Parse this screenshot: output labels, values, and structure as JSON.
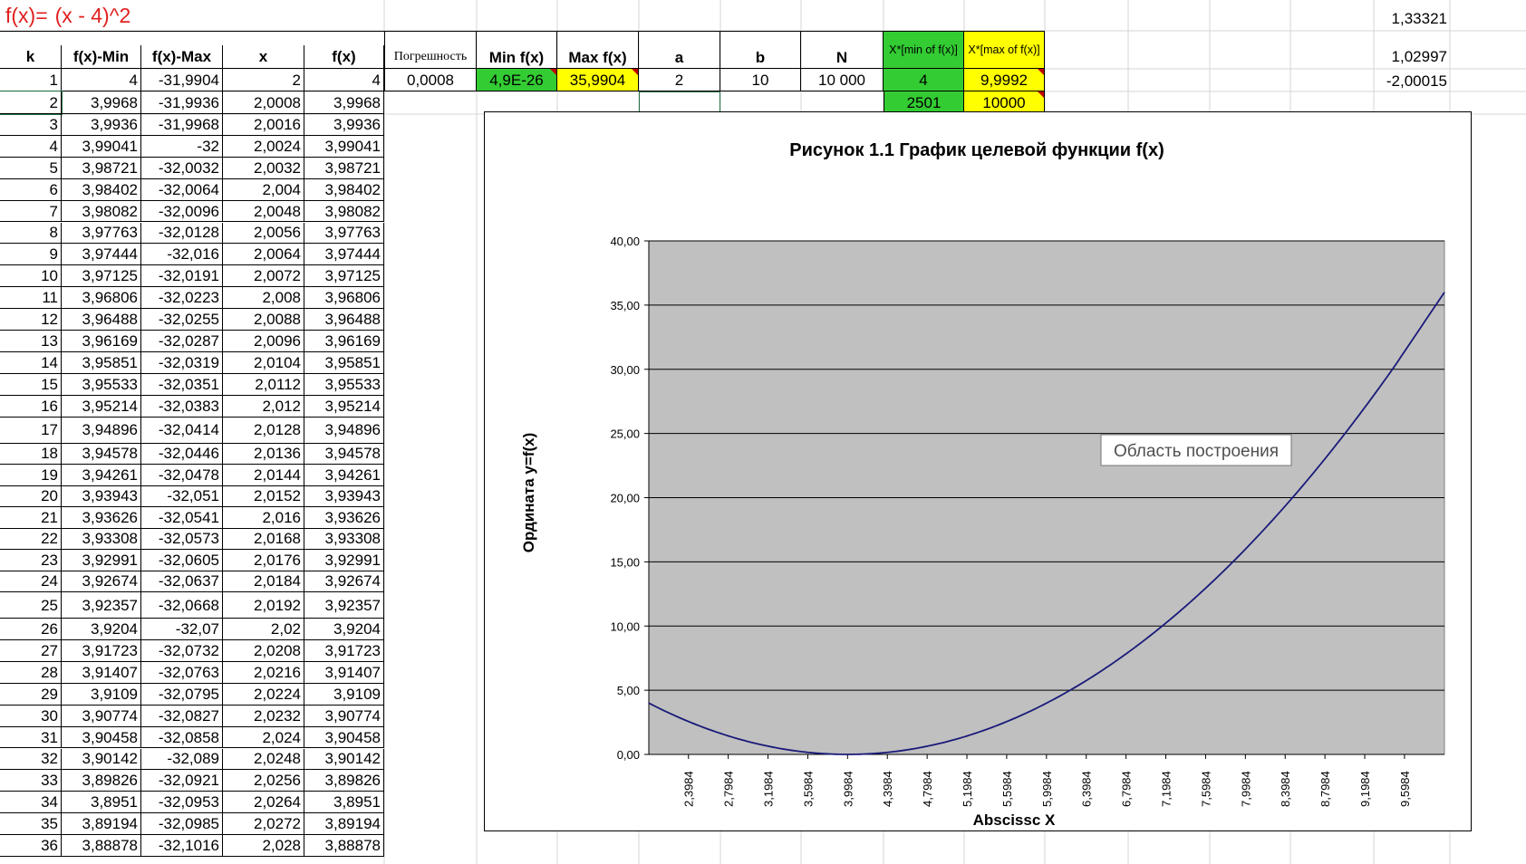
{
  "formula": {
    "lhs": "f(x)=",
    "rhs": "(x - 4)^2"
  },
  "right_values": [
    "1,33321",
    "1,02997",
    "-2,00015"
  ],
  "table": {
    "headers": [
      "k",
      "f(x)-Min",
      "f(x)-Max",
      "x",
      "f(x)"
    ],
    "rows": [
      [
        "1",
        "4",
        "-31,9904",
        "2",
        "4"
      ],
      [
        "2",
        "3,9968",
        "-31,9936",
        "2,0008",
        "3,9968"
      ],
      [
        "3",
        "3,9936",
        "-31,9968",
        "2,0016",
        "3,9936"
      ],
      [
        "4",
        "3,99041",
        "-32",
        "2,0024",
        "3,99041"
      ],
      [
        "5",
        "3,98721",
        "-32,0032",
        "2,0032",
        "3,98721"
      ],
      [
        "6",
        "3,98402",
        "-32,0064",
        "2,004",
        "3,98402"
      ],
      [
        "7",
        "3,98082",
        "-32,0096",
        "2,0048",
        "3,98082"
      ],
      [
        "8",
        "3,97763",
        "-32,0128",
        "2,0056",
        "3,97763"
      ],
      [
        "9",
        "3,97444",
        "-32,016",
        "2,0064",
        "3,97444"
      ],
      [
        "10",
        "3,97125",
        "-32,0191",
        "2,0072",
        "3,97125"
      ],
      [
        "11",
        "3,96806",
        "-32,0223",
        "2,008",
        "3,96806"
      ],
      [
        "12",
        "3,96488",
        "-32,0255",
        "2,0088",
        "3,96488"
      ],
      [
        "13",
        "3,96169",
        "-32,0287",
        "2,0096",
        "3,96169"
      ],
      [
        "14",
        "3,95851",
        "-32,0319",
        "2,0104",
        "3,95851"
      ],
      [
        "15",
        "3,95533",
        "-32,0351",
        "2,0112",
        "3,95533"
      ],
      [
        "16",
        "3,95214",
        "-32,0383",
        "2,012",
        "3,95214"
      ],
      [
        "17",
        "3,94896",
        "-32,0414",
        "2,0128",
        "3,94896"
      ],
      [
        "18",
        "3,94578",
        "-32,0446",
        "2,0136",
        "3,94578"
      ],
      [
        "19",
        "3,94261",
        "-32,0478",
        "2,0144",
        "3,94261"
      ],
      [
        "20",
        "3,93943",
        "-32,051",
        "2,0152",
        "3,93943"
      ],
      [
        "21",
        "3,93626",
        "-32,0541",
        "2,016",
        "3,93626"
      ],
      [
        "22",
        "3,93308",
        "-32,0573",
        "2,0168",
        "3,93308"
      ],
      [
        "23",
        "3,92991",
        "-32,0605",
        "2,0176",
        "3,92991"
      ],
      [
        "24",
        "3,92674",
        "-32,0637",
        "2,0184",
        "3,92674"
      ],
      [
        "25",
        "3,92357",
        "-32,0668",
        "2,0192",
        "3,92357"
      ],
      [
        "26",
        "3,9204",
        "-32,07",
        "2,02",
        "3,9204"
      ],
      [
        "27",
        "3,91723",
        "-32,0732",
        "2,0208",
        "3,91723"
      ],
      [
        "28",
        "3,91407",
        "-32,0763",
        "2,0216",
        "3,91407"
      ],
      [
        "29",
        "3,9109",
        "-32,0795",
        "2,0224",
        "3,9109"
      ],
      [
        "30",
        "3,90774",
        "-32,0827",
        "2,0232",
        "3,90774"
      ],
      [
        "31",
        "3,90458",
        "-32,0858",
        "2,024",
        "3,90458"
      ],
      [
        "32",
        "3,90142",
        "-32,089",
        "2,0248",
        "3,90142"
      ],
      [
        "33",
        "3,89826",
        "-32,0921",
        "2,0256",
        "3,89826"
      ],
      [
        "34",
        "3,8951",
        "-32,0953",
        "2,0264",
        "3,8951"
      ],
      [
        "35",
        "3,89194",
        "-32,0985",
        "2,0272",
        "3,89194"
      ],
      [
        "36",
        "3,88878",
        "-32,1016",
        "2,028",
        "3,88878"
      ]
    ]
  },
  "params": {
    "headers": {
      "error": "Погрешность",
      "min": "Min f(x)",
      "max": "Max f(x)",
      "a": "a",
      "b": "b",
      "n": "N",
      "xmin": "X*[min of f(x)]",
      "xmax": "X*[max of f(x)]"
    },
    "values": {
      "error": "0,0008",
      "min": "4,9E-26",
      "max": "35,9904",
      "a": "2",
      "b": "10",
      "n": "10 000",
      "xmin": "4",
      "xmax": "9,9992"
    },
    "indices": {
      "xmin": "2501",
      "xmax": "10000"
    }
  },
  "colors": {
    "green": "#33cc33",
    "yellow": "#ffff00",
    "plot_bg": "#c0c0c0",
    "line": "#1a1a7a",
    "formula": "#e0201e"
  },
  "chart_data": {
    "type": "line",
    "title": "Рисунок 1.1 График целевой функции f(x)",
    "xlabel": "Abscissc X",
    "ylabel": "Ордината y=f(x)",
    "function": "(x - 4)^2",
    "xlim": [
      2,
      10
    ],
    "ylim": [
      0,
      40
    ],
    "yticks": [
      "0,00",
      "5,00",
      "10,00",
      "15,00",
      "20,00",
      "25,00",
      "30,00",
      "35,00",
      "40,00"
    ],
    "xticks": [
      "2,3984",
      "2,7984",
      "3,1984",
      "3,5984",
      "3,9984",
      "4,3984",
      "4,7984",
      "5,1984",
      "5,5984",
      "5,9984",
      "6,3984",
      "6,7984",
      "7,1984",
      "7,5984",
      "7,9984",
      "8,3984",
      "8,7984",
      "9,1984",
      "9,5984"
    ],
    "tooltip": "Область построения",
    "grid": true,
    "legend": "none",
    "series": [
      {
        "x": [
          2,
          2.5,
          3,
          3.5,
          4,
          4.5,
          5,
          5.5,
          6,
          6.5,
          7,
          7.5,
          8,
          8.5,
          9,
          9.5,
          10
        ],
        "values": [
          4,
          2.25,
          1,
          0.25,
          0,
          0.25,
          1,
          2.25,
          4,
          6.25,
          9,
          12.25,
          16,
          20.25,
          25,
          30.25,
          36
        ]
      }
    ]
  }
}
